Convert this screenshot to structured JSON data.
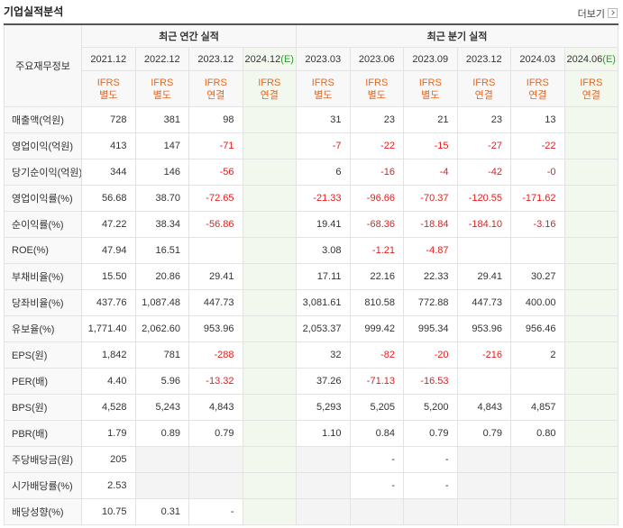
{
  "header": {
    "title": "기업실적분석",
    "more": "더보기"
  },
  "table": {
    "corner": "주요재무정보",
    "groups": [
      "최근 연간 실적",
      "최근 분기 실적"
    ],
    "periods": [
      {
        "label": "2021.12"
      },
      {
        "label": "2022.12"
      },
      {
        "label": "2023.12"
      },
      {
        "label": "2024.12",
        "estimate": "(E)"
      },
      {
        "label": "2023.03"
      },
      {
        "label": "2023.06"
      },
      {
        "label": "2023.09"
      },
      {
        "label": "2023.12"
      },
      {
        "label": "2024.03"
      },
      {
        "label": "2024.06",
        "estimate": "(E)"
      }
    ],
    "standards": [
      [
        "IFRS",
        "별도"
      ],
      [
        "IFRS",
        "별도"
      ],
      [
        "IFRS",
        "연결"
      ],
      [
        "IFRS",
        "연결"
      ],
      [
        "IFRS",
        "별도"
      ],
      [
        "IFRS",
        "별도"
      ],
      [
        "IFRS",
        "별도"
      ],
      [
        "IFRS",
        "연결"
      ],
      [
        "IFRS",
        "연결"
      ],
      [
        "IFRS",
        "연결"
      ]
    ],
    "rows": [
      {
        "label": "매출액(억원)",
        "values": [
          "728",
          "381",
          "98",
          null,
          "31",
          "23",
          "21",
          "23",
          "13",
          null
        ]
      },
      {
        "label": "영업이익(억원)",
        "values": [
          "413",
          "147",
          "-71",
          null,
          "-7",
          "-22",
          "-15",
          "-27",
          "-22",
          null
        ]
      },
      {
        "label": "당기순이익(억원)",
        "values": [
          "344",
          "146",
          "-56",
          null,
          "6",
          "-16",
          "-4",
          "-42",
          "-0",
          null
        ]
      },
      {
        "label": "영업이익률(%)",
        "values": [
          "56.68",
          "38.70",
          "-72.65",
          null,
          "-21.33",
          "-96.66",
          "-70.37",
          "-120.55",
          "-171.62",
          null
        ]
      },
      {
        "label": "순이익률(%)",
        "values": [
          "47.22",
          "38.34",
          "-56.86",
          null,
          "19.41",
          "-68.36",
          "-18.84",
          "-184.10",
          "-3.16",
          null
        ]
      },
      {
        "label": "ROE(%)",
        "values": [
          "47.94",
          "16.51",
          null,
          null,
          "3.08",
          "-1.21",
          "-4.87",
          null,
          null,
          null
        ]
      },
      {
        "label": "부채비율(%)",
        "values": [
          "15.50",
          "20.86",
          "29.41",
          null,
          "17.11",
          "22.16",
          "22.33",
          "29.41",
          "30.27",
          null
        ]
      },
      {
        "label": "당좌비율(%)",
        "values": [
          "437.76",
          "1,087.48",
          "447.73",
          null,
          "3,081.61",
          "810.58",
          "772.88",
          "447.73",
          "400.00",
          null
        ]
      },
      {
        "label": "유보율(%)",
        "values": [
          "1,771.40",
          "2,062.60",
          "953.96",
          null,
          "2,053.37",
          "999.42",
          "995.34",
          "953.96",
          "956.46",
          null
        ]
      },
      {
        "label": "EPS(원)",
        "values": [
          "1,842",
          "781",
          "-288",
          null,
          "32",
          "-82",
          "-20",
          "-216",
          "2",
          null
        ]
      },
      {
        "label": "PER(배)",
        "values": [
          "4.40",
          "5.96",
          "-13.32",
          null,
          "37.26",
          "-71.13",
          "-16.53",
          null,
          null,
          null
        ]
      },
      {
        "label": "BPS(원)",
        "values": [
          "4,528",
          "5,243",
          "4,843",
          null,
          "5,293",
          "5,205",
          "5,200",
          "4,843",
          "4,857",
          null
        ]
      },
      {
        "label": "PBR(배)",
        "values": [
          "1.79",
          "0.89",
          "0.79",
          null,
          "1.10",
          "0.84",
          "0.79",
          "0.79",
          "0.80",
          null
        ]
      },
      {
        "label": "주당배당금(원)",
        "values": [
          "205",
          null,
          null,
          null,
          null,
          "-",
          "-",
          null,
          null,
          null
        ]
      },
      {
        "label": "시가배당률(%)",
        "values": [
          "2.53",
          null,
          null,
          null,
          null,
          "-",
          "-",
          null,
          null,
          null
        ]
      },
      {
        "label": "배당성향(%)",
        "values": [
          "10.75",
          "0.31",
          "-",
          null,
          null,
          null,
          null,
          null,
          null,
          null
        ]
      }
    ]
  }
}
